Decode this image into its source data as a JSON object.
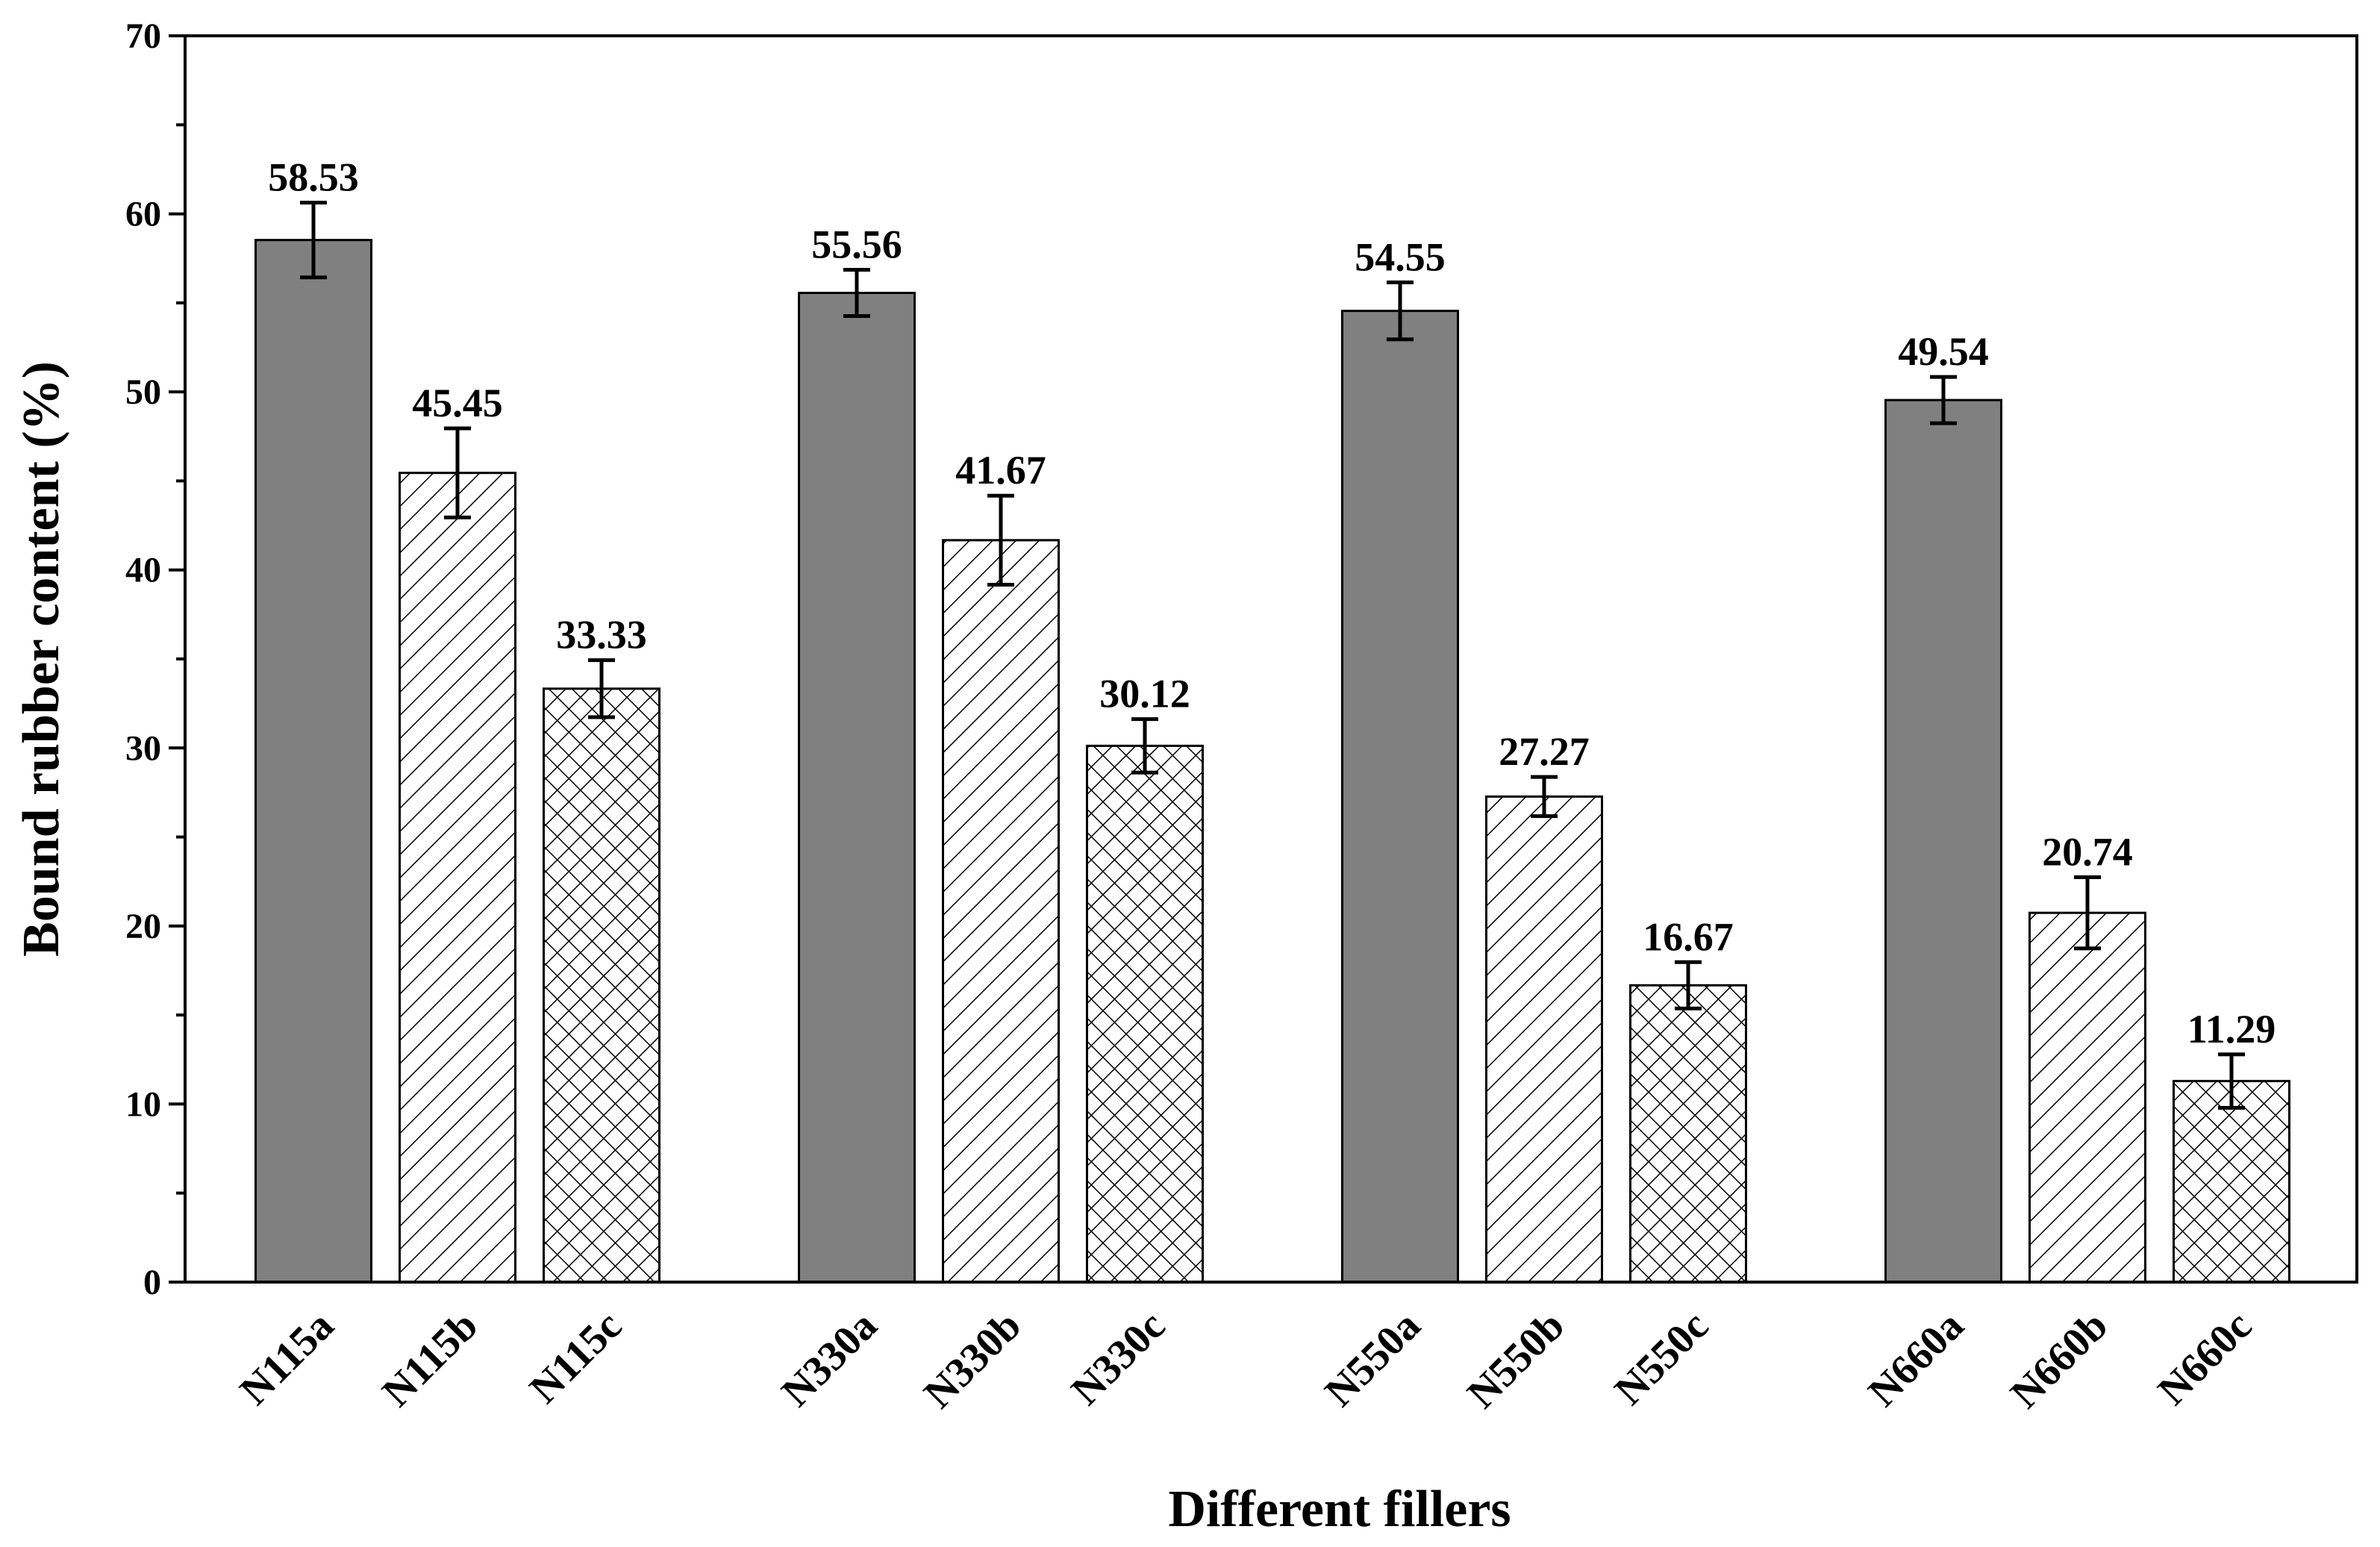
{
  "chart_data": {
    "type": "bar",
    "title": "",
    "xlabel": "Different fillers",
    "ylabel": "Bound rubber content (%)",
    "ylim": [
      0,
      70
    ],
    "yticks": [
      0,
      10,
      20,
      30,
      40,
      50,
      60,
      70
    ],
    "grid": false,
    "legend": "none",
    "groups": [
      "N115",
      "N330",
      "N550",
      "N660"
    ],
    "categories": [
      "N115a",
      "N115b",
      "N115c",
      "N330a",
      "N330b",
      "N330c",
      "N550a",
      "N550b",
      "N550c",
      "N660a",
      "N660b",
      "N660c"
    ],
    "values": [
      58.53,
      45.45,
      33.33,
      55.56,
      41.67,
      30.12,
      54.55,
      27.27,
      16.67,
      49.54,
      20.74,
      11.29
    ],
    "value_labels": [
      "58.53",
      "45.45",
      "33.33",
      "55.56",
      "41.67",
      "30.12",
      "54.55",
      "27.27",
      "16.67",
      "49.54",
      "20.74",
      "11.29"
    ],
    "errors": [
      2.1,
      2.5,
      1.6,
      1.3,
      2.5,
      1.5,
      1.6,
      1.1,
      1.3,
      1.3,
      2.0,
      1.5
    ],
    "styles": [
      "solid",
      "diagonal",
      "crosshatch",
      "solid",
      "diagonal",
      "crosshatch",
      "solid",
      "diagonal",
      "crosshatch",
      "solid",
      "diagonal",
      "crosshatch"
    ],
    "colors": {
      "solid_fill": "#808080",
      "pattern_line": "#000000",
      "background": "#ffffff"
    }
  }
}
